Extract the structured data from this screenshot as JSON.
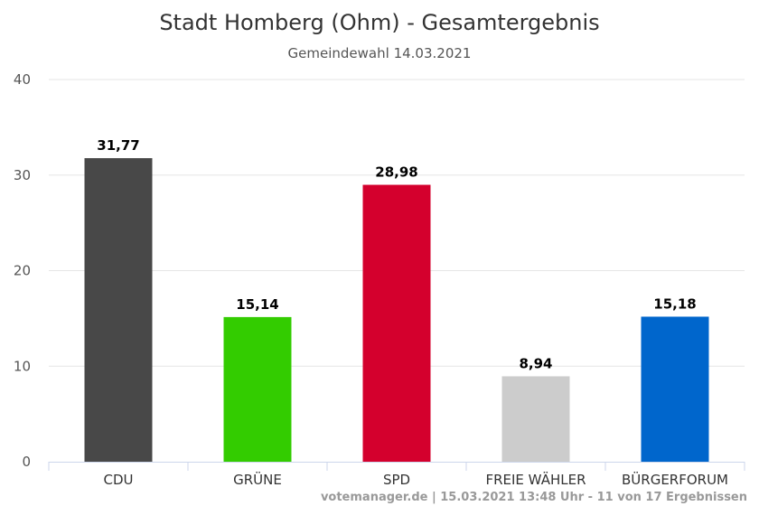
{
  "chart_data": {
    "type": "bar",
    "title": "Stadt Homberg (Ohm) - Gesamtergebnis",
    "subtitle": "Gemeindewahl 14.03.2021",
    "categories": [
      "CDU",
      "GRÜNE",
      "SPD",
      "FREIE WÄHLER",
      "BÜRGERFORUM"
    ],
    "values": [
      31.77,
      15.14,
      28.98,
      8.94,
      15.18
    ],
    "data_labels": [
      "31,77",
      "15,14",
      "28,98",
      "8,94",
      "15,18"
    ],
    "colors": [
      "#484848",
      "#33cc00",
      "#d4002d",
      "#cccccc",
      "#0066cc"
    ],
    "ylim": [
      0,
      40
    ],
    "yticks": [
      0,
      10,
      20,
      30,
      40
    ],
    "ytick_labels": [
      "0",
      "10",
      "20",
      "30",
      "40"
    ],
    "grid": true,
    "legend": "none"
  },
  "credits": "votemanager.de | 15.03.2021 13:48 Uhr - 11 von 17 Ergebnissen"
}
